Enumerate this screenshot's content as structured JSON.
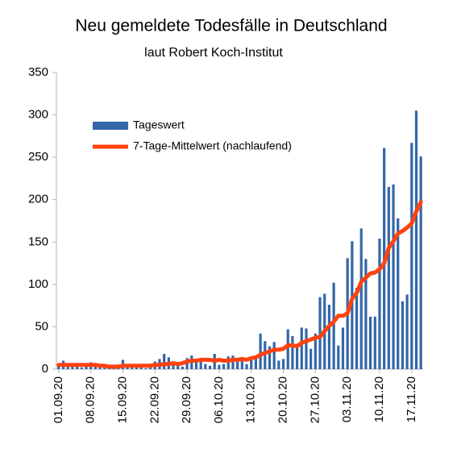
{
  "chart_data": {
    "type": "bar",
    "title": "Neu gemeldete Todesfälle in Deutschland",
    "subtitle": "laut Robert Koch-Institut",
    "categories": [
      "01.09.20",
      null,
      null,
      null,
      null,
      null,
      null,
      "08.09.20",
      null,
      null,
      null,
      null,
      null,
      null,
      "15.09.20",
      null,
      null,
      null,
      null,
      null,
      null,
      "22.09.20",
      null,
      null,
      null,
      null,
      null,
      null,
      "29.09.20",
      null,
      null,
      null,
      null,
      null,
      null,
      "06.10.20",
      null,
      null,
      null,
      null,
      null,
      null,
      "13.10.20",
      null,
      null,
      null,
      null,
      null,
      null,
      "20.10.20",
      null,
      null,
      null,
      null,
      null,
      null,
      "27.10.20",
      null,
      null,
      null,
      null,
      null,
      null,
      "03.11.20",
      null,
      null,
      null,
      null,
      null,
      null,
      "10.11.20",
      null,
      null,
      null,
      null,
      null,
      null,
      "17.11.20",
      null,
      null
    ],
    "series": [
      {
        "name": "Tageswert",
        "type": "bar",
        "color": "#3466a8",
        "values": [
          5,
          10,
          6,
          5,
          3,
          2,
          4,
          8,
          4,
          3,
          2,
          1,
          2,
          3,
          11,
          5,
          3,
          4,
          2,
          1,
          3,
          9,
          12,
          18,
          14,
          8,
          5,
          3,
          13,
          16,
          12,
          10,
          6,
          4,
          18,
          5,
          6,
          15,
          16,
          12,
          10,
          6,
          11,
          13,
          42,
          33,
          27,
          32,
          10,
          12,
          47,
          39,
          30,
          49,
          48,
          24,
          42,
          85,
          89,
          76,
          102,
          28,
          49,
          131,
          151,
          96,
          166,
          130,
          62,
          62,
          154,
          261,
          215,
          218,
          178,
          80,
          88,
          267,
          305,
          251
        ]
      },
      {
        "name": "7-Tage-Mittelwert (nachlaufend)",
        "type": "line",
        "color": "#ff420e",
        "values": [
          5,
          5,
          5,
          5,
          5,
          5,
          5,
          5,
          5,
          4,
          4,
          3,
          3,
          3,
          4,
          4,
          4,
          4,
          4,
          4,
          4,
          5,
          5,
          6,
          6,
          7,
          6,
          7,
          9,
          10,
          10,
          11,
          11,
          11,
          10,
          11,
          10,
          10,
          11,
          11,
          12,
          11,
          13,
          14,
          17,
          19,
          21,
          23,
          23,
          24,
          28,
          28,
          27,
          31,
          33,
          35,
          37,
          38,
          45,
          51,
          56,
          63,
          63,
          66,
          83,
          90,
          103,
          108,
          113,
          114,
          118,
          125,
          143,
          151,
          160,
          163,
          167,
          172,
          186,
          197
        ]
      }
    ],
    "ylim": [
      0,
      350
    ],
    "yticks": [
      0,
      50,
      100,
      150,
      200,
      250,
      300,
      350
    ],
    "grid": false,
    "legend": "top-left"
  }
}
